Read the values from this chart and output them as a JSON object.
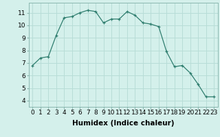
{
  "x": [
    0,
    1,
    2,
    3,
    4,
    5,
    6,
    7,
    8,
    9,
    10,
    11,
    12,
    13,
    14,
    15,
    16,
    17,
    18,
    19,
    20,
    21,
    22,
    23
  ],
  "y": [
    6.8,
    7.4,
    7.5,
    9.2,
    10.6,
    10.7,
    11.0,
    11.2,
    11.1,
    10.2,
    10.5,
    10.5,
    11.1,
    10.8,
    10.2,
    10.1,
    9.9,
    7.9,
    6.7,
    6.8,
    6.2,
    5.3,
    4.3,
    4.3
  ],
  "line_color": "#2e7d6e",
  "marker": "+",
  "bg_color": "#d4f0eb",
  "grid_color": "#b8ddd7",
  "xlabel": "Humidex (Indice chaleur)",
  "xlim": [
    -0.5,
    23.5
  ],
  "ylim": [
    3.5,
    11.8
  ],
  "yticks": [
    4,
    5,
    6,
    7,
    8,
    9,
    10,
    11
  ],
  "xtick_labels": [
    "0",
    "1",
    "2",
    "3",
    "4",
    "5",
    "6",
    "7",
    "8",
    "9",
    "10",
    "11",
    "12",
    "13",
    "14",
    "15",
    "16",
    "17",
    "18",
    "19",
    "20",
    "21",
    "22",
    "23"
  ],
  "xlabel_fontsize": 7.5,
  "tick_fontsize": 6.5
}
